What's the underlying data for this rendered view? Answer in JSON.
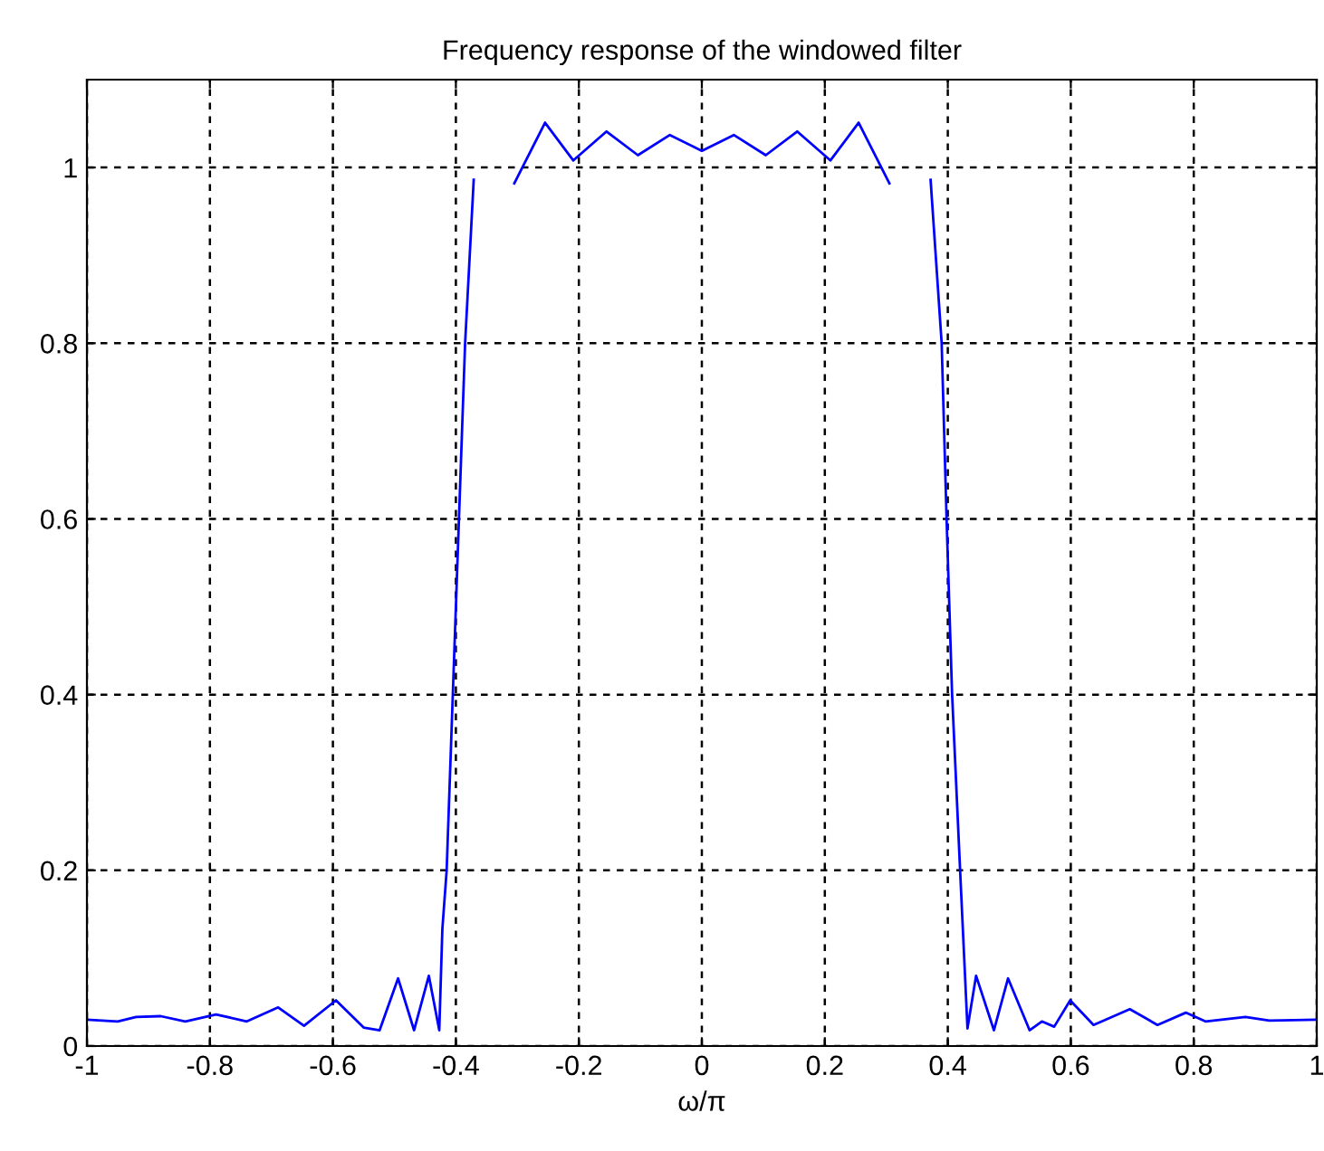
{
  "chart_data": {
    "type": "line",
    "title": "Frequency response of the windowed filter",
    "xlabel": "ω/π",
    "series": [
      {
        "color": "#0000ff",
        "x": [
          -1,
          -0.95,
          -0.92,
          -0.88,
          -0.84,
          -0.79,
          -0.74,
          -0.689,
          -0.647,
          -0.595,
          -0.55,
          -0.524,
          -0.494,
          -0.468,
          -0.444,
          -0.427,
          -0.422,
          -0.415,
          -0.405,
          -0.395,
          -0.385,
          -0.371,
          -0.352,
          -0.305,
          -0.255,
          -0.209,
          -0.155,
          -0.104,
          -0.052,
          0.0,
          0.052,
          0.104,
          0.155,
          0.209,
          0.255,
          0.305,
          0.352,
          0.372,
          0.39,
          0.398,
          0.407,
          0.42,
          0.432,
          0.446,
          0.475,
          0.498,
          0.533,
          0.553,
          0.573,
          0.599,
          0.637,
          0.696,
          0.741,
          0.787,
          0.819,
          0.884,
          0.923,
          1
        ],
        "values": [
          0.03,
          0.028,
          0.033,
          0.034,
          0.028,
          0.036,
          0.028,
          0.044,
          0.023,
          0.052,
          0.021,
          0.018,
          0.077,
          0.018,
          0.08,
          0.018,
          0.133,
          0.2,
          0.4,
          0.6,
          0.8,
          0.986,
          null,
          0.982,
          1.051,
          1.008,
          1.041,
          1.014,
          1.037,
          1.019,
          1.037,
          1.014,
          1.041,
          1.008,
          1.051,
          0.982,
          null,
          0.986,
          0.8,
          0.6,
          0.4,
          0.2,
          0.02,
          0.08,
          0.018,
          0.077,
          0.018,
          0.028,
          0.022,
          0.052,
          0.024,
          0.042,
          0.024,
          0.038,
          0.028,
          0.033,
          0.029,
          0.03
        ]
      }
    ],
    "xlim": [
      -1,
      1
    ],
    "ylim": [
      0,
      1.1
    ],
    "xticks": [
      -1,
      -0.8,
      -0.6,
      -0.4,
      -0.2,
      0,
      0.2,
      0.4,
      0.6,
      0.8,
      1
    ],
    "yticks": [
      0,
      0.2,
      0.4,
      0.6,
      0.8,
      1
    ],
    "grid": true,
    "marker": "none",
    "line_style": "solid",
    "legend": false
  }
}
